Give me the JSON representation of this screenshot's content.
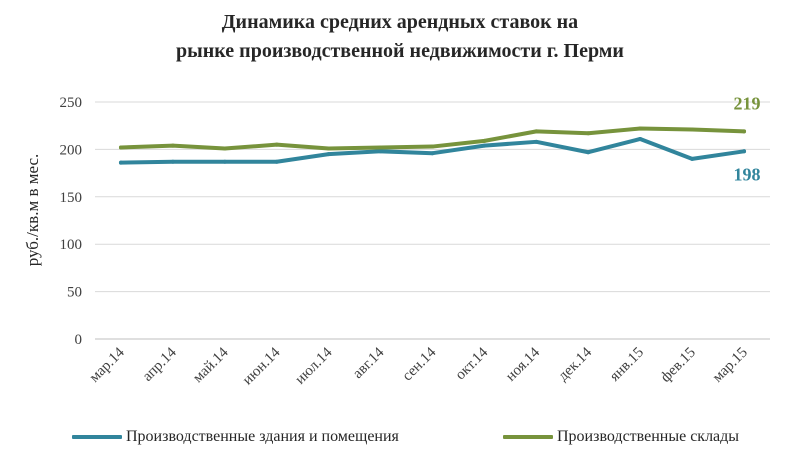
{
  "chart_data": {
    "type": "line",
    "title": [
      "Динамика средних арендных ставок на",
      "рынке производственной недвижимости г. Перми"
    ],
    "xlabel": "",
    "ylabel": "руб./кв.м в мес.",
    "categories": [
      "мар.14",
      "апр.14",
      "май.14",
      "июн.14",
      "июл.14",
      "авг.14",
      "сен.14",
      "окт.14",
      "ноя.14",
      "дек.14",
      "янв.15",
      "фев.15",
      "мар.15"
    ],
    "yticks": [
      "0",
      "50",
      "100",
      "150",
      "200",
      "250"
    ],
    "ylim": [
      0,
      250
    ],
    "grid": true,
    "legend_position": "bottom",
    "series": [
      {
        "name": "Производственные здания и помещения",
        "color": "#31859c",
        "values": [
          186,
          187,
          187,
          187,
          195,
          198,
          196,
          204,
          208,
          197,
          211,
          190,
          198
        ],
        "end_label": "198"
      },
      {
        "name": "Производственные склады",
        "color": "#77933c",
        "values": [
          202,
          204,
          201,
          205,
          201,
          202,
          203,
          209,
          219,
          217,
          222,
          221,
          219
        ],
        "end_label": "219"
      }
    ]
  }
}
